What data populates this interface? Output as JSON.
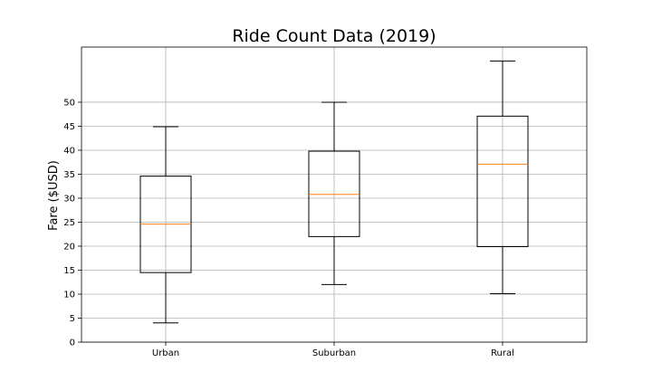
{
  "chart_data": {
    "type": "box",
    "title": "Ride Count Data (2019)",
    "xlabel": "",
    "ylabel": "Fare ($USD)",
    "categories": [
      "Urban",
      "Suburban",
      "Rural"
    ],
    "boxes": [
      {
        "category": "Urban",
        "whisker_low": 4.0,
        "q1": 14.5,
        "median": 24.6,
        "q3": 34.6,
        "whisker_high": 44.9
      },
      {
        "category": "Suburban",
        "whisker_low": 12.0,
        "q1": 22.0,
        "median": 30.8,
        "q3": 39.8,
        "whisker_high": 50.0
      },
      {
        "category": "Rural",
        "whisker_low": 10.1,
        "q1": 19.9,
        "median": 37.1,
        "q3": 47.1,
        "whisker_high": 58.6
      }
    ],
    "yticks": [
      0,
      5,
      10,
      15,
      20,
      25,
      30,
      35,
      40,
      45,
      50
    ],
    "ylim": [
      0,
      61.5
    ],
    "grid": true,
    "colors": {
      "box": "#000000",
      "median": "#ff7f0e",
      "grid": "#b0b0b0"
    }
  }
}
